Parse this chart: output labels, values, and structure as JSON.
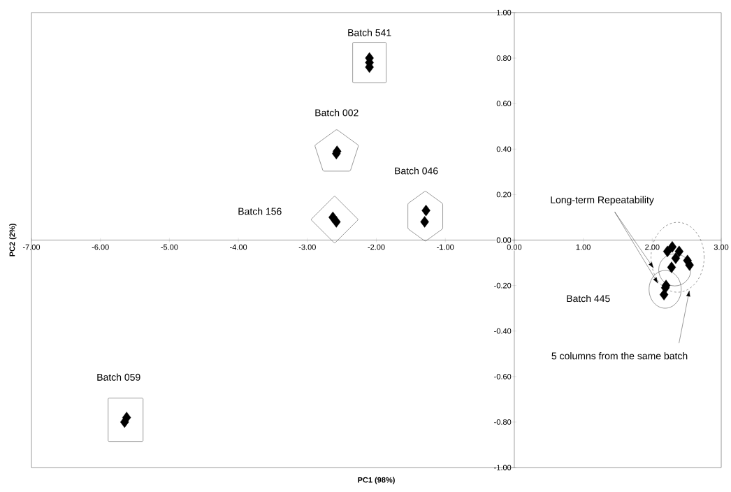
{
  "chart_data": {
    "type": "scatter",
    "xlabel": "PC1 (98%)",
    "ylabel": "PC2 (2%)",
    "xlim": [
      -7,
      3
    ],
    "ylim": [
      -1,
      1
    ],
    "xticks": [
      {
        "value": -7,
        "label": "-7.00"
      },
      {
        "value": -6,
        "label": "-6.00"
      },
      {
        "value": -5,
        "label": "-5.00"
      },
      {
        "value": -4,
        "label": "-4.00"
      },
      {
        "value": -3,
        "label": "-3.00"
      },
      {
        "value": -2,
        "label": "-2.00"
      },
      {
        "value": -1,
        "label": "-1.00"
      },
      {
        "value": 0,
        "label": "0.00"
      },
      {
        "value": 1,
        "label": "1.00"
      },
      {
        "value": 2,
        "label": "2.00"
      },
      {
        "value": 3,
        "label": "3.00"
      }
    ],
    "yticks": [
      {
        "value": -1,
        "label": "-1.00"
      },
      {
        "value": -0.8,
        "label": "-0.80"
      },
      {
        "value": -0.6,
        "label": "-0.60"
      },
      {
        "value": -0.4,
        "label": "-0.40"
      },
      {
        "value": -0.2,
        "label": "-0.20"
      },
      {
        "value": 0,
        "label": "0.00"
      },
      {
        "value": 0.2,
        "label": "0.20"
      },
      {
        "value": 0.4,
        "label": "0.40"
      },
      {
        "value": 0.6,
        "label": "0.60"
      },
      {
        "value": 0.8,
        "label": "0.80"
      },
      {
        "value": 1,
        "label": "1.00"
      }
    ],
    "marker": "diamond",
    "series": [
      {
        "color": "#000000",
        "x": [
          -2.1,
          -2.1,
          -2.1
        ],
        "values": [
          0.8,
          0.78,
          0.76
        ]
      },
      {
        "color": "#000000",
        "x": [
          -2.57,
          -2.58
        ],
        "values": [
          0.39,
          0.38
        ]
      },
      {
        "color": "#000000",
        "x": [
          -1.28,
          -1.3
        ],
        "values": [
          0.13,
          0.08
        ]
      },
      {
        "color": "#000000",
        "x": [
          -2.63,
          -2.58
        ],
        "values": [
          0.1,
          0.08
        ]
      },
      {
        "color": "#000000",
        "x": [
          -5.62,
          -5.65
        ],
        "values": [
          -0.78,
          -0.8
        ]
      },
      {
        "color": "#000000",
        "x": [
          2.29,
          2.39,
          2.51,
          2.54,
          2.28,
          2.34,
          2.22
        ],
        "values": [
          -0.03,
          -0.05,
          -0.09,
          -0.11,
          -0.12,
          -0.08,
          -0.05
        ]
      },
      {
        "color": "#000000",
        "x": [
          2.2,
          2.19,
          2.17
        ],
        "values": [
          -0.2,
          -0.21,
          -0.24
        ]
      }
    ],
    "annotations": [
      "Batch 541",
      "Batch 002",
      "Batch 046",
      "Batch 156",
      "Batch 059",
      "Batch 445",
      "Long-term Repeatability",
      "5 columns from the same batch"
    ]
  }
}
